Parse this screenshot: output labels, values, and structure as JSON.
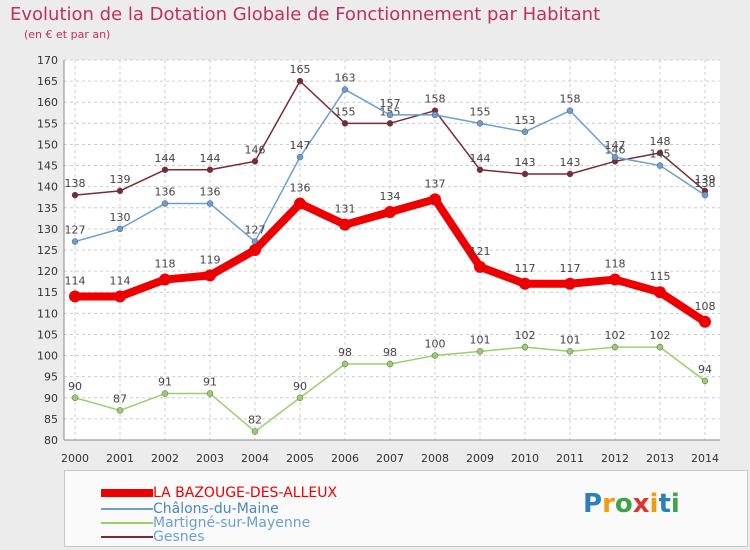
{
  "header": {
    "title": "Evolution de la Dotation Globale de Fonctionnement par Habitant",
    "subtitle": "(en € et par an)"
  },
  "brand": {
    "text": "Proxiti"
  },
  "colors": {
    "title": "#c0305c",
    "background": "#ececec",
    "plot_background": "#ffffff",
    "grid": "#cccccc"
  },
  "chart_data": {
    "type": "line",
    "title": "Evolution de la Dotation Globale de Fonctionnement par Habitant",
    "subtitle": "(en € et par an)",
    "xlabel": "",
    "ylabel": "",
    "x": [
      "2000",
      "2001",
      "2002",
      "2003",
      "2004",
      "2005",
      "2006",
      "2007",
      "2008",
      "2009",
      "2010",
      "2011",
      "2012",
      "2013",
      "2014"
    ],
    "ylim": [
      80,
      170
    ],
    "yticks": [
      80,
      85,
      90,
      95,
      100,
      105,
      110,
      115,
      120,
      125,
      130,
      135,
      140,
      145,
      150,
      155,
      160,
      165,
      170
    ],
    "grid": true,
    "legend_position": "bottom",
    "series": [
      {
        "name": "LA BAZOUGE-DES-ALLEUX",
        "color": "#ee0000",
        "values": [
          114,
          114,
          118,
          119,
          125,
          136,
          131,
          134,
          137,
          121,
          117,
          117,
          118,
          115,
          108
        ],
        "labels": [
          "114",
          "114",
          "118",
          "119",
          "",
          "136",
          "131",
          "134",
          "137",
          "121",
          "117",
          "117",
          "118",
          "115",
          "108"
        ]
      },
      {
        "name": "Châlons-du-Maine",
        "color": "#6a9fd4",
        "values": [
          127,
          130,
          136,
          136,
          127,
          147,
          163,
          157,
          157,
          155,
          153,
          158,
          147,
          145,
          138
        ],
        "labels": [
          "127",
          "130",
          "136",
          "136",
          "127",
          "147",
          "163",
          "157",
          "",
          "155",
          "153",
          "158",
          "147",
          "145",
          "138"
        ]
      },
      {
        "name": "Martigné-sur-Mayenne",
        "color": "#99d06b",
        "values": [
          90,
          87,
          91,
          91,
          82,
          90,
          98,
          98,
          100,
          101,
          102,
          101,
          102,
          102,
          94
        ],
        "labels": [
          "90",
          "87",
          "91",
          "91",
          "82",
          "90",
          "98",
          "98",
          "100",
          "101",
          "102",
          "101",
          "102",
          "102",
          "94"
        ]
      },
      {
        "name": "Gesnes",
        "color": "#7a2a36",
        "values": [
          138,
          139,
          144,
          144,
          146,
          165,
          155,
          155,
          158,
          144,
          143,
          143,
          146,
          148,
          139
        ],
        "labels": [
          "138",
          "139",
          "144",
          "144",
          "146",
          "165",
          "155",
          "155",
          "158",
          "144",
          "143",
          "143",
          "146",
          "148",
          "139"
        ]
      }
    ]
  }
}
